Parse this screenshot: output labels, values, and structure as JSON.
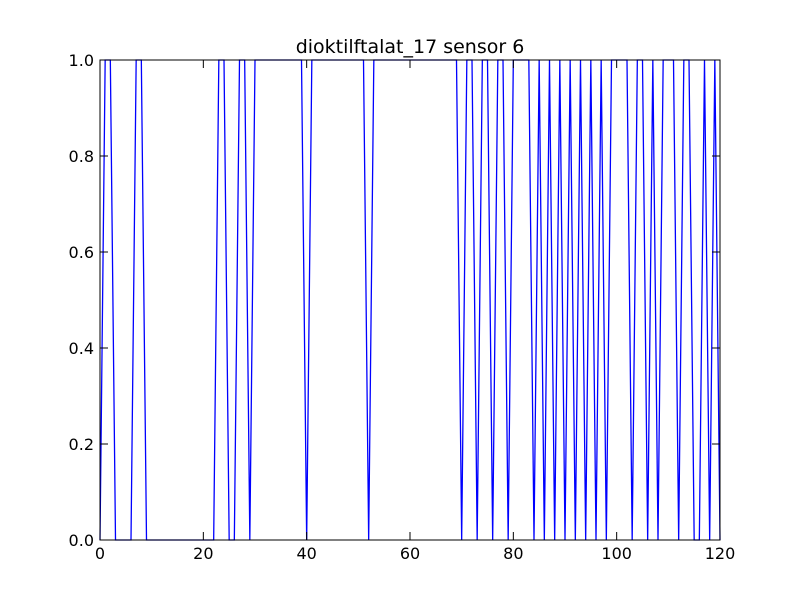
{
  "chart_data": {
    "type": "line",
    "title": "dioktilftalat_17 sensor 6",
    "xlabel": "",
    "ylabel": "",
    "xlim": [
      0,
      120
    ],
    "ylim": [
      0.0,
      1.0
    ],
    "grid": false,
    "x_ticks": [
      "0",
      "20",
      "40",
      "60",
      "80",
      "100",
      "120"
    ],
    "y_ticks": [
      "0.0",
      "0.2",
      "0.4",
      "0.6",
      "0.8",
      "1.0"
    ],
    "x_tick_values": [
      0,
      20,
      40,
      60,
      80,
      100,
      120
    ],
    "y_tick_values": [
      0.0,
      0.2,
      0.4,
      0.6,
      0.8,
      1.0
    ],
    "series": [
      {
        "color": "#0000ff",
        "x": [
          0,
          1,
          2,
          3,
          4,
          5,
          6,
          7,
          8,
          9,
          10,
          11,
          12,
          13,
          14,
          15,
          16,
          17,
          18,
          19,
          20,
          21,
          22,
          23,
          24,
          25,
          26,
          27,
          28,
          29,
          30,
          31,
          32,
          33,
          34,
          35,
          36,
          37,
          38,
          39,
          40,
          41,
          42,
          43,
          44,
          45,
          46,
          47,
          48,
          49,
          50,
          51,
          52,
          53,
          54,
          55,
          56,
          57,
          58,
          59,
          60,
          61,
          62,
          63,
          64,
          65,
          66,
          67,
          68,
          69,
          70,
          71,
          72,
          73,
          74,
          75,
          76,
          77,
          78,
          79,
          80,
          81,
          82,
          83,
          84,
          85,
          86,
          87,
          88,
          89,
          90,
          91,
          92,
          93,
          94,
          95,
          96,
          97,
          98,
          99,
          100,
          101,
          102,
          103,
          104,
          105,
          106,
          107,
          108,
          109,
          110,
          111,
          112,
          113,
          114,
          115,
          116,
          117,
          118,
          119,
          120
        ],
        "y": [
          0,
          1,
          1,
          0,
          0,
          0,
          0,
          1,
          1,
          0,
          0,
          0,
          0,
          0,
          0,
          0,
          0,
          0,
          0,
          0,
          0,
          0,
          0,
          1,
          1,
          0,
          0,
          1,
          1,
          0,
          1,
          1,
          1,
          1,
          1,
          1,
          1,
          1,
          1,
          1,
          0,
          1,
          1,
          1,
          1,
          1,
          1,
          1,
          1,
          1,
          1,
          1,
          0,
          1,
          1,
          1,
          1,
          1,
          1,
          1,
          1,
          1,
          1,
          1,
          1,
          1,
          1,
          1,
          1,
          1,
          0,
          1,
          1,
          0,
          1,
          1,
          0,
          1,
          1,
          0,
          1,
          1,
          1,
          1,
          0,
          1,
          0,
          1,
          0,
          1,
          0,
          1,
          0,
          1,
          0,
          1,
          0,
          1,
          0,
          1,
          1,
          1,
          1,
          0,
          1,
          1,
          0,
          1,
          0,
          1,
          1,
          1,
          0,
          1,
          1,
          0,
          0,
          1,
          0,
          1,
          0
        ]
      }
    ],
    "colors": {
      "line": "#0000ff",
      "axes": "#000000",
      "background": "#ffffff"
    }
  }
}
